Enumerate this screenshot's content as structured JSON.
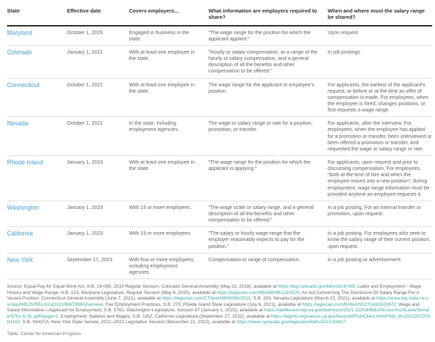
{
  "chart_data": {
    "type": "table",
    "columns": [
      "State",
      "Effective date",
      "Covers employers...",
      "What information are employers required to share?",
      "When and where must the salary range be shared?"
    ],
    "rows": [
      {
        "state": "Maryland",
        "effective_date": "October 1, 2020",
        "covers": "Engaged in business in the state.",
        "info": "\"The wage range for the position for which the applicant applied.\"",
        "when": "Upon request."
      },
      {
        "state": "Colorado",
        "effective_date": "January 1, 2021",
        "covers": "With at least one employee in the state.",
        "info": "\"Hourly or salary compensation, or a range of the hourly or salary compensation, and a general description of all the benefits and other compensation to be offered.\"",
        "when": "In job postings."
      },
      {
        "state": "Connecticut",
        "effective_date": "October 1, 2021",
        "covers": "With at least one employee in the state.",
        "info": "The wage range for the applicant or employee's position.",
        "when": "For applicants, the earliest of the applicant's request, or before or at the time an offer of compensation is made. For employees, when the employee is hired, changes positions, or first requests a wage range."
      },
      {
        "state": "Nevada",
        "effective_date": "October 1, 2021",
        "covers": "In the state, including employment agencies.",
        "info": "The wage or salary range or rate for a position, promotion, or transfer.",
        "when": "For applicants, after the interview. For employees, when the employee has applied for a promotion or transfer, been interviewed or been offered a promotion or transfer, and requested the wage or salary range or rate."
      },
      {
        "state": "Rhode Island",
        "effective_date": "January 1, 2023",
        "covers": "With at least one employee in the state.",
        "info": "\"The wage range for the position for which the applicant is applying.\"",
        "when": "For applicants, upon request and prior to discussing compensation. For employees, \"both at the time of hire and when the employee moves into a new position\"; during employment, wage range information must be provided anytime an employee requests it."
      },
      {
        "state": "Washington",
        "effective_date": "January 1, 2023",
        "covers": "With 15 or more employees.",
        "info": "\"The wage scale or salary range, and a general description of all the benefits and other compensation to be offered.\"",
        "when": "In a job posting. For an internal transfer or promotion, upon request."
      },
      {
        "state": "California",
        "effective_date": "January 1, 2023",
        "covers": "With 15 or more employees.",
        "info": "\"The salary or hourly wage range that the employer reasonably expects to pay for the position.\"",
        "when": "In a job posting. For employees who seek to know the salary range of their current position, upon request."
      },
      {
        "state": "New York",
        "effective_date": "September 17, 2023",
        "covers": "With four or more employees, including employment agencies.",
        "info": "Compensation or range of compensation.",
        "when": "In a job posting or advertisement."
      }
    ]
  },
  "footer": {
    "source_segments": [
      {
        "text": "Source: Equal Pay for Equal Work Act, S.B. 19-085, 2019 Regular Session, Colorado General Assembly (May 22, 2019), available at ",
        "link": false
      },
      {
        "text": "https://leg.colorado.gov/bills/sb19-085",
        "link": true
      },
      {
        "text": "; Labor and Employment - Wage History and Wage Range, H.B. 123, Maryland Legislature, Regular Session (May 8, 2020), available at ",
        "link": false
      },
      {
        "text": "https://legiscan.com/MD/bill/HB123/2020",
        "link": true
      },
      {
        "text": "; An Act Concerning The Disclosure Of Salary Range For A Vacant Position, Connecticut General Assembly (June 7, 2021), available at ",
        "link": false
      },
      {
        "text": "https://legiscan.com/CT/text/HB06380/2021",
        "link": true
      },
      {
        "text": "; S.B. 293, Nevada Legislature (March 22, 2021), available at ",
        "link": false
      },
      {
        "text": "https://www.leg.state.nv.us/App/NELIS/REL/81st2021/Bill/7896/Overview",
        "link": true
      },
      {
        "text": "; Fair Employment Practices, S.B. 270, Rhode Island State Legislature (July 6, 2021), available at ",
        "link": false
      },
      {
        "text": "https://legiscan.com/RI/text/S0270/id/2420672",
        "link": true
      },
      {
        "text": "; Wage and Salary Information—Applicant for Employment, S.B. 5761, Washington Legislature, Session 67 (January 1, 2023), available at ",
        "link": false
      },
      {
        "text": "https://lawfilesext.leg.wa.gov/biennium/2021-22/Pdf/Bills/Session%20Laws/Senate/5761-S.SL.pdf#page=1",
        "link": true
      },
      {
        "text": "; Employment: Salaries and Wages, S.B. 1162, California Legislature (September 27, 2022), available at ",
        "link": false
      },
      {
        "text": "https://leginfo.legislature.ca.gov/faces/billTextClient.xhtml?bill_id=202120220SB1162",
        "link": true
      },
      {
        "text": "; S.B. S9427A, New York State Senate, 2021–2022 Legislative Session (December 21, 2022), available at ",
        "link": false
      },
      {
        "text": "https://www.nysenate.gov/legislation/bills/2021/S9427",
        "link": true
      },
      {
        "text": ".",
        "link": false
      }
    ],
    "credit": "Table: Center for American Progress"
  },
  "colors": {
    "state_link": "#4d9dd5",
    "footer_link": "#3aa7a2",
    "header_text": "#333333",
    "body_text": "#5f6368",
    "row_divider": "#e1e1e1",
    "header_divider": "#2b2b2b"
  }
}
